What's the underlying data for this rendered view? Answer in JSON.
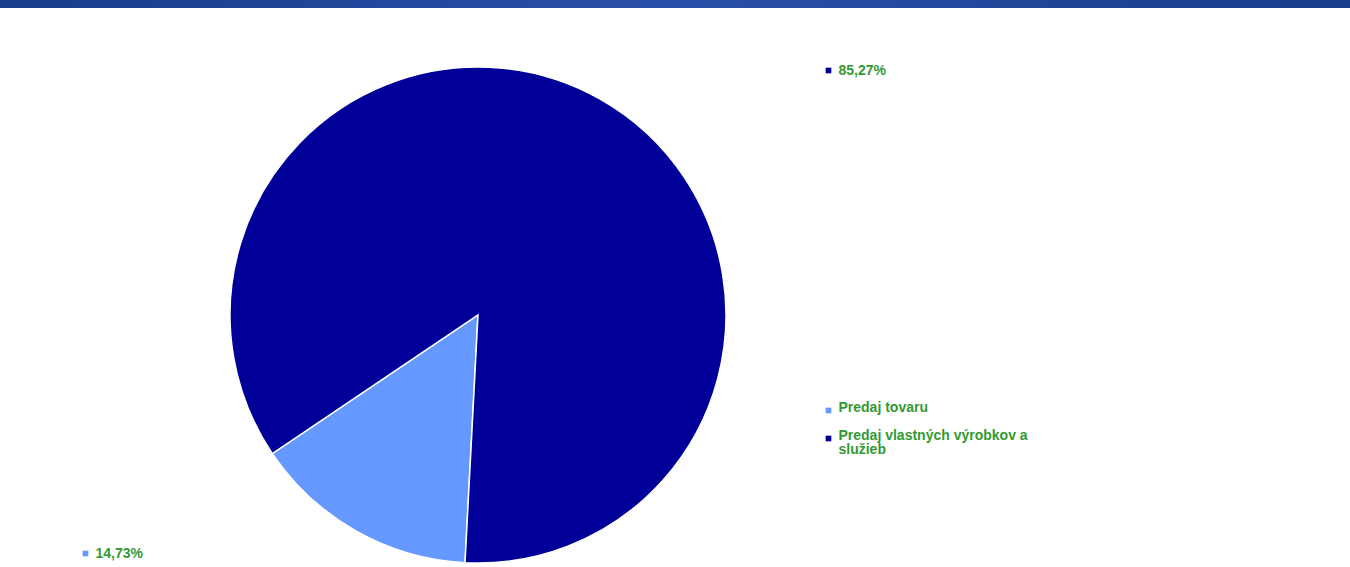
{
  "chart_data": {
    "type": "pie",
    "categories": [
      "Predaj tovaru",
      "Predaj vlastných výrobkov a služieb"
    ],
    "values": [
      14.73,
      85.27
    ],
    "value_labels": [
      "14,73%",
      "85,27%"
    ],
    "colors": [
      "#6699ff",
      "#000099"
    ],
    "data_labels": true,
    "legend": "right"
  }
}
